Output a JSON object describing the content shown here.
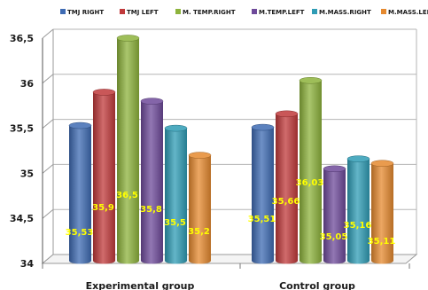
{
  "chart_data": {
    "type": "bar",
    "categories": [
      "Experimental group",
      "Control group"
    ],
    "series": [
      {
        "name": "TMJ RIGHT",
        "values": [
          35.53,
          35.51
        ],
        "labels": [
          "35,53",
          "35,51"
        ],
        "color": "#3e6bb3"
      },
      {
        "name": "TMJ LEFT",
        "values": [
          35.9,
          35.66
        ],
        "labels": [
          "35,9",
          "35,66"
        ],
        "color": "#c0393b"
      },
      {
        "name": "M. TEMP.RIGHT",
        "values": [
          36.5,
          36.03
        ],
        "labels": [
          "36,5",
          "36,03"
        ],
        "color": "#8db33c"
      },
      {
        "name": "M.TEMP.LEFT",
        "values": [
          35.8,
          35.05
        ],
        "labels": [
          "35,8",
          "35,05"
        ],
        "color": "#6e4a9a"
      },
      {
        "name": "M.MASS.RIGHT",
        "values": [
          35.5,
          35.16
        ],
        "labels": [
          "35,5",
          "35,16"
        ],
        "color": "#2f9cb5"
      },
      {
        "name": "M.MASS.LEFT",
        "values": [
          35.2,
          35.11
        ],
        "labels": [
          "35,2",
          "35,11"
        ],
        "color": "#e5892f"
      }
    ],
    "ylim": [
      34,
      36.5
    ],
    "yticks": [
      "34",
      "34,5",
      "35",
      "35,5",
      "36",
      "36,5"
    ],
    "grid": true,
    "legend": "top"
  }
}
